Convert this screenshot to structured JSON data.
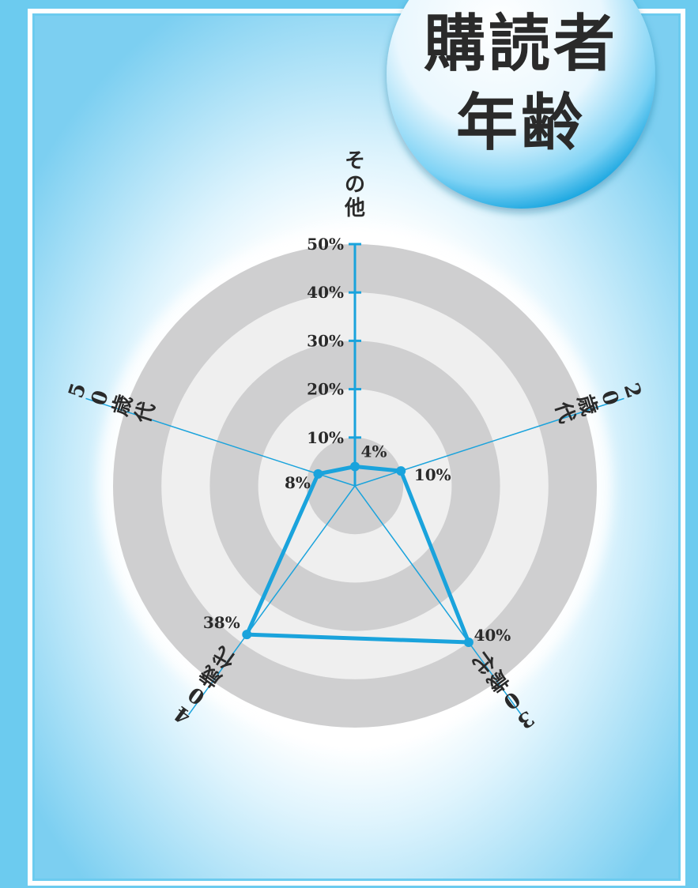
{
  "title_lines": [
    "購読者",
    "年齢"
  ],
  "colors": {
    "frame": "#6ccbef",
    "background_center": "#ffffff",
    "background_edge": "#7ccff1",
    "ring_dark": "#cfcfd0",
    "ring_light": "#efefef",
    "spoke": "#1aa3dc",
    "series_line": "#1aa3dc",
    "text": "#2a2a2a"
  },
  "chart_data": {
    "type": "radar",
    "categories": [
      "その他",
      "20歳代",
      "30歳代",
      "40歳代",
      "50歳代"
    ],
    "values": [
      4,
      10,
      40,
      38,
      8
    ],
    "value_labels": [
      "4%",
      "10%",
      "40%",
      "38%",
      "8%"
    ],
    "radial_ticks": [
      "10%",
      "20%",
      "30%",
      "40%",
      "50%"
    ],
    "rmax": 50,
    "legend": "none",
    "grid": true
  }
}
